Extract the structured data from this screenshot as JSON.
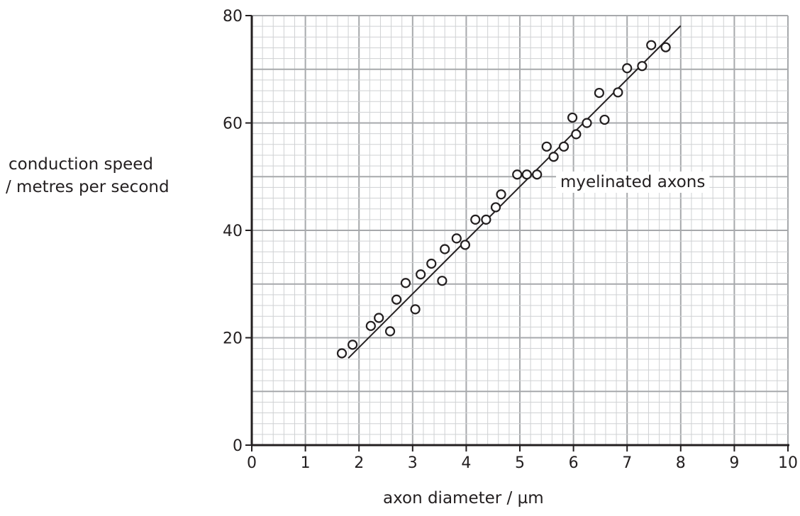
{
  "chart_data": {
    "type": "scatter",
    "title": "",
    "xlabel": "axon diameter / µm",
    "ylabel": [
      "conduction speed",
      "/ metres per second"
    ],
    "xlim": [
      0,
      10
    ],
    "ylim": [
      0,
      80
    ],
    "x_ticks": [
      0,
      1,
      2,
      3,
      4,
      5,
      6,
      7,
      8,
      9,
      10
    ],
    "y_ticks": [
      0,
      20,
      40,
      60,
      80
    ],
    "grid": true,
    "annotation": "myelinated axons",
    "points": [
      {
        "x": 1.68,
        "y": 17.1
      },
      {
        "x": 1.88,
        "y": 18.7
      },
      {
        "x": 2.22,
        "y": 22.2
      },
      {
        "x": 2.37,
        "y": 23.7
      },
      {
        "x": 2.58,
        "y": 21.2
      },
      {
        "x": 2.7,
        "y": 27.1
      },
      {
        "x": 2.87,
        "y": 30.2
      },
      {
        "x": 3.05,
        "y": 25.3
      },
      {
        "x": 3.15,
        "y": 31.8
      },
      {
        "x": 3.35,
        "y": 33.8
      },
      {
        "x": 3.55,
        "y": 30.6
      },
      {
        "x": 3.6,
        "y": 36.5
      },
      {
        "x": 3.82,
        "y": 38.5
      },
      {
        "x": 3.98,
        "y": 37.3
      },
      {
        "x": 4.17,
        "y": 42.0
      },
      {
        "x": 4.37,
        "y": 42.0
      },
      {
        "x": 4.55,
        "y": 44.3
      },
      {
        "x": 4.65,
        "y": 46.7
      },
      {
        "x": 4.95,
        "y": 50.4
      },
      {
        "x": 5.13,
        "y": 50.4
      },
      {
        "x": 5.32,
        "y": 50.4
      },
      {
        "x": 5.5,
        "y": 55.6
      },
      {
        "x": 5.63,
        "y": 53.7
      },
      {
        "x": 5.82,
        "y": 55.6
      },
      {
        "x": 5.98,
        "y": 61.0
      },
      {
        "x": 6.05,
        "y": 57.9
      },
      {
        "x": 6.25,
        "y": 60.0
      },
      {
        "x": 6.48,
        "y": 65.6
      },
      {
        "x": 6.58,
        "y": 60.6
      },
      {
        "x": 6.83,
        "y": 65.7
      },
      {
        "x": 7.0,
        "y": 70.2
      },
      {
        "x": 7.28,
        "y": 70.6
      },
      {
        "x": 7.45,
        "y": 74.5
      },
      {
        "x": 7.72,
        "y": 74.1
      }
    ],
    "trendline": [
      {
        "x": 1.8,
        "y": 16.2
      },
      {
        "x": 8.0,
        "y": 78.1
      }
    ]
  }
}
